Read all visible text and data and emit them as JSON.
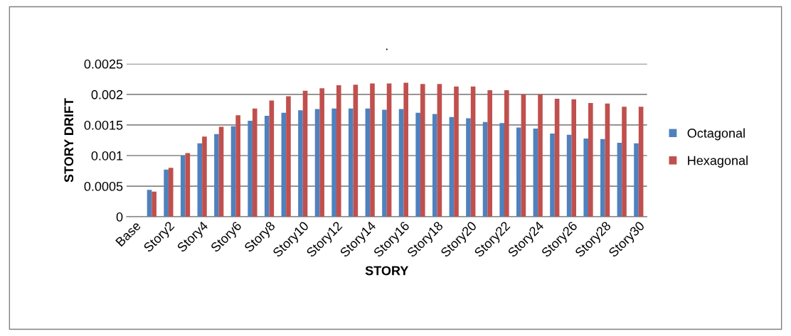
{
  "chart_data": {
    "type": "bar",
    "title": ".",
    "xlabel": "STORY",
    "ylabel": "STORY DRIFT",
    "categories": [
      "Base",
      null,
      "Story2",
      null,
      "Story4",
      null,
      "Story6",
      null,
      "Story8",
      null,
      "Story10",
      null,
      "Story12",
      null,
      "Story14",
      null,
      "Story16",
      null,
      "Story18",
      null,
      "Story20",
      null,
      "Story22",
      null,
      "Story24",
      null,
      "Story26",
      null,
      "Story28",
      null,
      "Story30"
    ],
    "series": [
      {
        "name": "Octagonal",
        "color": "#4f81bd",
        "values": [
          0,
          0.00044,
          0.00077,
          0.001,
          0.0012,
          0.00135,
          0.00148,
          0.00157,
          0.00165,
          0.0017,
          0.00174,
          0.00176,
          0.00177,
          0.00177,
          0.00177,
          0.00175,
          0.00176,
          0.0017,
          0.00168,
          0.00163,
          0.00161,
          0.00155,
          0.00153,
          0.00146,
          0.00144,
          0.00136,
          0.00134,
          0.00128,
          0.00127,
          0.00121,
          0.0012
        ]
      },
      {
        "name": "Hexagonal",
        "color": "#c0504d",
        "values": [
          0,
          0.00041,
          0.0008,
          0.00104,
          0.00131,
          0.00147,
          0.00166,
          0.00177,
          0.0019,
          0.00197,
          0.00206,
          0.0021,
          0.00215,
          0.00216,
          0.00218,
          0.00218,
          0.00219,
          0.00217,
          0.00217,
          0.00213,
          0.00213,
          0.00207,
          0.00207,
          0.002,
          0.002,
          0.00193,
          0.00192,
          0.00186,
          0.00185,
          0.0018,
          0.0018
        ]
      }
    ],
    "ylim": [
      0,
      0.0025
    ],
    "yticks": [
      0,
      0.0005,
      0.001,
      0.0015,
      0.002,
      0.0025
    ],
    "grid": "y",
    "legend": "right"
  }
}
